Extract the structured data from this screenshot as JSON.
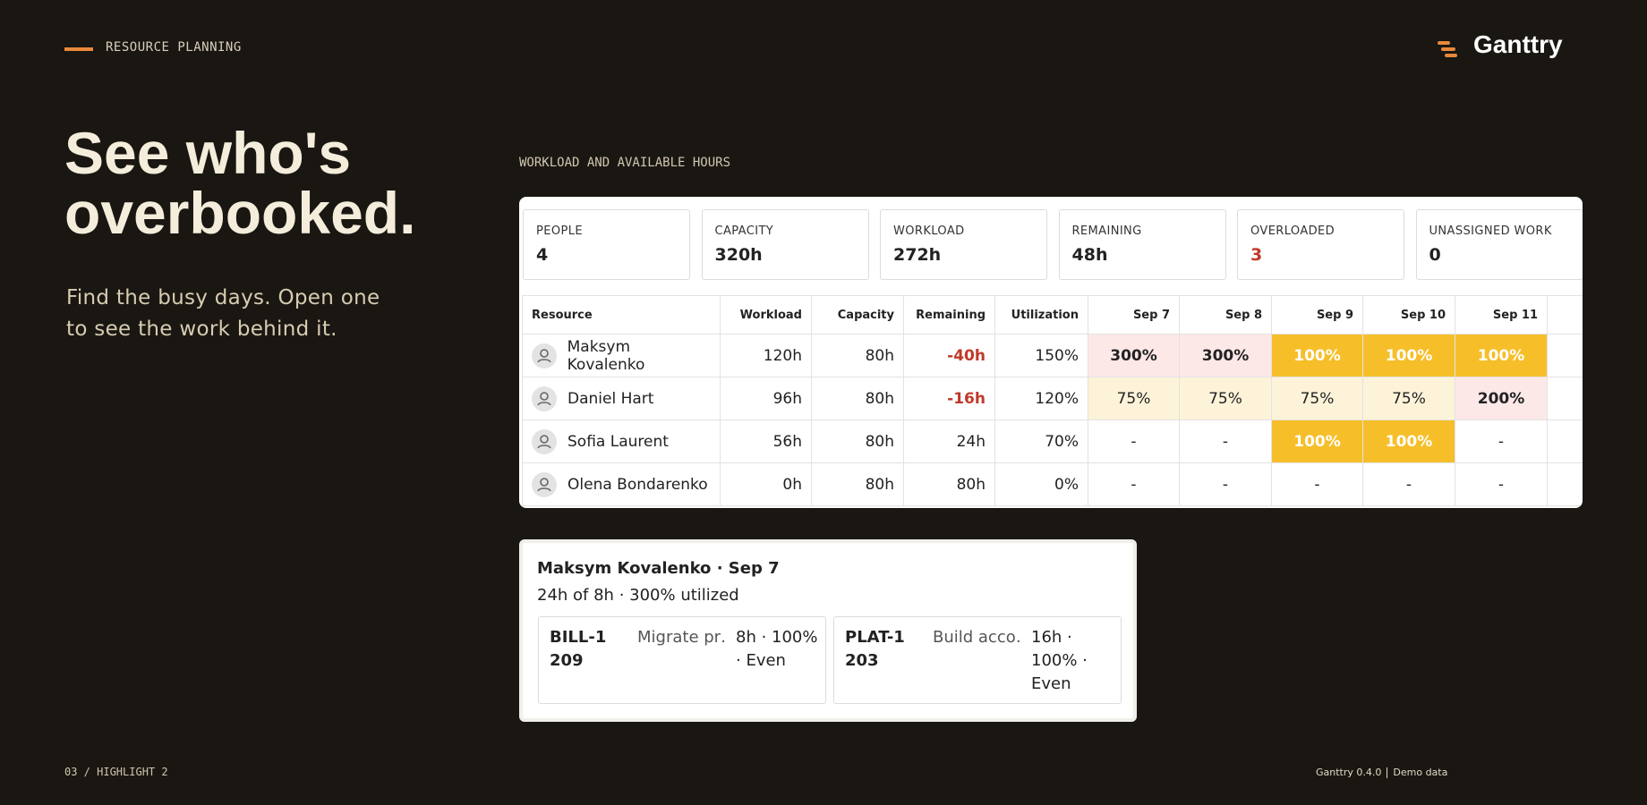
{
  "header": {
    "eyebrow": "RESOURCE PLANNING",
    "brand": "Ganttry"
  },
  "hero": {
    "title_lines": [
      "See who's",
      "overbooked."
    ],
    "subtitle_lines": [
      "Find the busy days. Open one",
      "to see the work behind it."
    ]
  },
  "panel": {
    "label": "WORKLOAD AND AVAILABLE HOURS",
    "stats": [
      {
        "label": "PEOPLE",
        "value": "4"
      },
      {
        "label": "CAPACITY",
        "value": "320h"
      },
      {
        "label": "WORKLOAD",
        "value": "272h"
      },
      {
        "label": "REMAINING",
        "value": "48h"
      },
      {
        "label": "OVERLOADED",
        "value": "3",
        "color": "#c0392b"
      },
      {
        "label": "UNASSIGNED WORK",
        "value": "0"
      }
    ],
    "table": {
      "columns": [
        "Resource",
        "Workload",
        "Capacity",
        "Remaining",
        "Utilization",
        "Sep 7",
        "Sep 8",
        "Sep 9",
        "Sep 10",
        "Sep 11"
      ],
      "rows": [
        {
          "name": "Maksym Kovalenko",
          "workload": "120h",
          "capacity": "80h",
          "remaining": "-40h",
          "remaining_color": "#c0392b",
          "utilization": "150%",
          "days": [
            {
              "text": "300%",
              "bg": "#fde8e8",
              "weight": 700
            },
            {
              "text": "300%",
              "bg": "#fde8e8",
              "weight": 700
            },
            {
              "text": "100%",
              "bg": "#f6bf2a",
              "ink": "#ffffff",
              "weight": 700
            },
            {
              "text": "100%",
              "bg": "#f6bf2a",
              "ink": "#ffffff",
              "weight": 700
            },
            {
              "text": "100%",
              "bg": "#f6bf2a",
              "ink": "#ffffff",
              "weight": 700
            }
          ]
        },
        {
          "name": "Daniel Hart",
          "workload": "96h",
          "capacity": "80h",
          "remaining": "-16h",
          "remaining_color": "#c0392b",
          "utilization": "120%",
          "days": [
            {
              "text": "75%",
              "bg": "#fdf3d9"
            },
            {
              "text": "75%",
              "bg": "#fdf3d9"
            },
            {
              "text": "75%",
              "bg": "#fdf3d9"
            },
            {
              "text": "75%",
              "bg": "#fdf3d9"
            },
            {
              "text": "200%",
              "bg": "#fde8e8",
              "weight": 700
            }
          ]
        },
        {
          "name": "Sofia Laurent",
          "workload": "56h",
          "capacity": "80h",
          "remaining": "24h",
          "utilization": "70%",
          "days": [
            {
              "text": "-"
            },
            {
              "text": "-"
            },
            {
              "text": "100%",
              "bg": "#f6bf2a",
              "ink": "#ffffff",
              "weight": 700
            },
            {
              "text": "100%",
              "bg": "#f6bf2a",
              "ink": "#ffffff",
              "weight": 700
            },
            {
              "text": "-"
            }
          ]
        },
        {
          "name": "Olena Bondarenko",
          "workload": "0h",
          "capacity": "80h",
          "remaining": "80h",
          "utilization": "0%",
          "days": [
            {
              "text": "-"
            },
            {
              "text": "-"
            },
            {
              "text": "-"
            },
            {
              "text": "-"
            },
            {
              "text": "-"
            }
          ]
        }
      ]
    }
  },
  "detail": {
    "title": "Maksym Kovalenko · Sep 7",
    "summary": "24h of 8h · 300% utilized",
    "items": [
      {
        "key": "BILL-1209",
        "name": "Migrate pr…",
        "meta": "8h · 100% · Even"
      },
      {
        "key": "PLAT-1203",
        "name": "Build acco…",
        "meta": "16h · 100% · Even"
      }
    ]
  },
  "footer": {
    "slide": "03 / HIGHLIGHT 2",
    "version": "Ganttry 0.4.0",
    "note": "Demo data"
  }
}
